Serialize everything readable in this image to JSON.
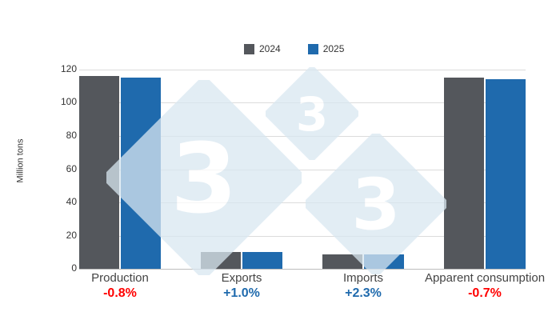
{
  "chart_data": {
    "type": "bar",
    "title": "",
    "xlabel": "",
    "ylabel": "Million tons",
    "ylim": [
      0,
      120
    ],
    "yticks": [
      0,
      20,
      40,
      60,
      80,
      100,
      120
    ],
    "grid": true,
    "legend_position": "top",
    "categories": [
      "Production",
      "Exports",
      "Imports",
      "Apparent consumption"
    ],
    "series": [
      {
        "name": "2024",
        "color": "#54575c",
        "values": [
          116.1,
          10.1,
          8.6,
          115.2
        ]
      },
      {
        "name": "2025",
        "color": "#1f6aad",
        "values": [
          115.2,
          10.2,
          8.8,
          114.4
        ]
      }
    ],
    "annotations": [
      {
        "category": "Production",
        "text": "-0.8%",
        "color": "#ff0000"
      },
      {
        "category": "Exports",
        "text": "+1.0%",
        "color": "#1f6aad"
      },
      {
        "category": "Imports",
        "text": "+2.3%",
        "color": "#1f6aad"
      },
      {
        "category": "Apparent consumption",
        "text": "-0.7%",
        "color": "#ff0000"
      }
    ]
  },
  "legend": {
    "items": [
      {
        "label": "2024",
        "color": "#54575c"
      },
      {
        "label": "2025",
        "color": "#1f6aad"
      }
    ]
  },
  "watermark": {
    "glyph": "3",
    "color": "#d9e7f1"
  }
}
